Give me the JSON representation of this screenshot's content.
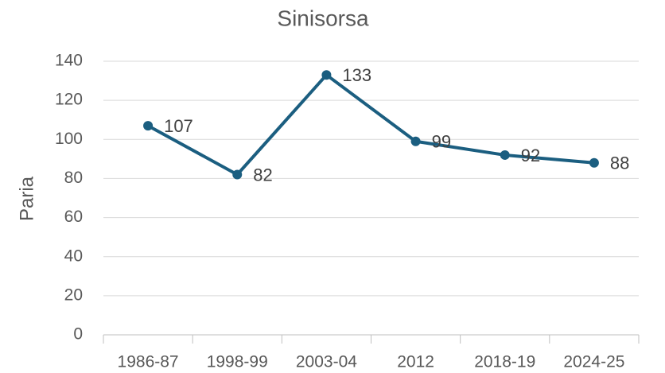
{
  "chart_data": {
    "type": "line",
    "title": "Sinisorsa",
    "y_label": "Paria",
    "categories": [
      "1986-87",
      "1998-99",
      "2003-04",
      "2012",
      "2018-19",
      "2024-25"
    ],
    "values": [
      107,
      82,
      133,
      99,
      92,
      88
    ],
    "color": "#1b5e80",
    "ylim": [
      0,
      140
    ],
    "yticks": [
      0,
      20,
      40,
      60,
      80,
      100,
      120,
      140
    ],
    "grid": true
  }
}
